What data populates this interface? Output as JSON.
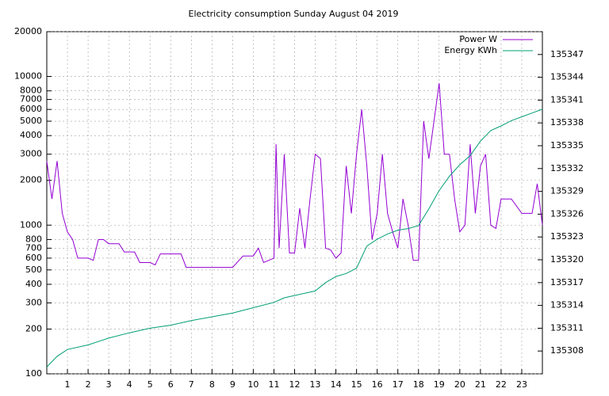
{
  "chart_data": {
    "type": "line",
    "title": "Electricity consumption Sunday August 04 2019",
    "ylog": true,
    "grid": true,
    "legend": "top-right",
    "xlim": [
      0,
      24
    ],
    "xticks": [
      1,
      2,
      3,
      4,
      5,
      6,
      7,
      8,
      9,
      10,
      11,
      12,
      13,
      14,
      15,
      16,
      17,
      18,
      19,
      20,
      21,
      22,
      23
    ],
    "ylim": [
      100,
      20000
    ],
    "yticks": [
      100,
      200,
      300,
      400,
      500,
      600,
      700,
      800,
      1000,
      2000,
      3000,
      4000,
      5000,
      6000,
      7000,
      8000,
      10000,
      20000
    ],
    "y2lim": [
      135305,
      135350
    ],
    "y2ticks": [
      135308,
      135311,
      135314,
      135317,
      135320,
      135323,
      135326,
      135329,
      135332,
      135335,
      135338,
      135341,
      135344,
      135347
    ],
    "series": [
      {
        "name": "Power W",
        "color": "#9400d3",
        "axis": "y",
        "x": [
          0,
          0.25,
          0.5,
          0.75,
          1,
          1.25,
          1.5,
          1.75,
          2,
          2.25,
          2.5,
          2.75,
          3,
          3.25,
          3.5,
          3.75,
          4,
          4.25,
          4.5,
          4.75,
          5,
          5.25,
          5.5,
          5.75,
          6,
          6.5,
          6.75,
          7,
          7.5,
          8,
          8.5,
          9,
          9.5,
          10,
          10.25,
          10.5,
          11,
          11.1,
          11.25,
          11.5,
          11.75,
          12,
          12.25,
          12.5,
          12.75,
          13,
          13.25,
          13.5,
          13.75,
          14,
          14.25,
          14.5,
          14.75,
          15,
          15.25,
          15.5,
          15.75,
          16,
          16.25,
          16.5,
          16.75,
          17,
          17.25,
          17.5,
          17.75,
          18,
          18.25,
          18.5,
          18.75,
          19,
          19.25,
          19.5,
          19.75,
          20,
          20.25,
          20.5,
          20.75,
          21,
          21.25,
          21.5,
          21.75,
          22,
          22.5,
          23,
          23.5,
          23.75,
          24
        ],
        "values": [
          2700,
          1500,
          2700,
          1200,
          900,
          800,
          600,
          600,
          600,
          580,
          800,
          800,
          750,
          750,
          750,
          660,
          660,
          660,
          560,
          560,
          560,
          540,
          640,
          640,
          640,
          640,
          520,
          520,
          520,
          520,
          520,
          520,
          620,
          620,
          700,
          560,
          600,
          3500,
          700,
          3000,
          650,
          650,
          1300,
          700,
          1500,
          3000,
          2800,
          700,
          680,
          600,
          650,
          2500,
          1200,
          3000,
          6000,
          2500,
          800,
          1200,
          3000,
          1200,
          900,
          700,
          1500,
          1000,
          580,
          580,
          5000,
          2800,
          5000,
          9000,
          3000,
          3000,
          1500,
          900,
          1000,
          3500,
          1200,
          2500,
          3000,
          1000,
          950,
          1500,
          1500,
          1200,
          1200,
          1900,
          1000
        ]
      },
      {
        "name": "Energy KWh",
        "color": "#009e73",
        "axis": "y2",
        "x": [
          0,
          0.5,
          1,
          2,
          3,
          4,
          5,
          6,
          7,
          8,
          9,
          10,
          11,
          11.5,
          12,
          13,
          13.5,
          14,
          14.5,
          15,
          15.5,
          16,
          16.5,
          17,
          17.5,
          18,
          18.5,
          19,
          19.5,
          20,
          20.5,
          21,
          21.5,
          22,
          22.5,
          23,
          23.5,
          24
        ],
        "values": [
          135305.9,
          135307.3,
          135308.2,
          135308.8,
          135309.7,
          135310.4,
          135311.0,
          135311.4,
          135312.0,
          135312.5,
          135313.0,
          135313.7,
          135314.4,
          135315.0,
          135315.3,
          135315.9,
          135317.0,
          135317.8,
          135318.2,
          135318.9,
          135321.8,
          135322.7,
          135323.4,
          135323.9,
          135324.1,
          135324.5,
          135326.7,
          135329.1,
          135331.0,
          135332.5,
          135333.7,
          135335.6,
          135337.0,
          135337.6,
          135338.3,
          135338.8,
          135339.3,
          135339.8
        ]
      }
    ]
  }
}
